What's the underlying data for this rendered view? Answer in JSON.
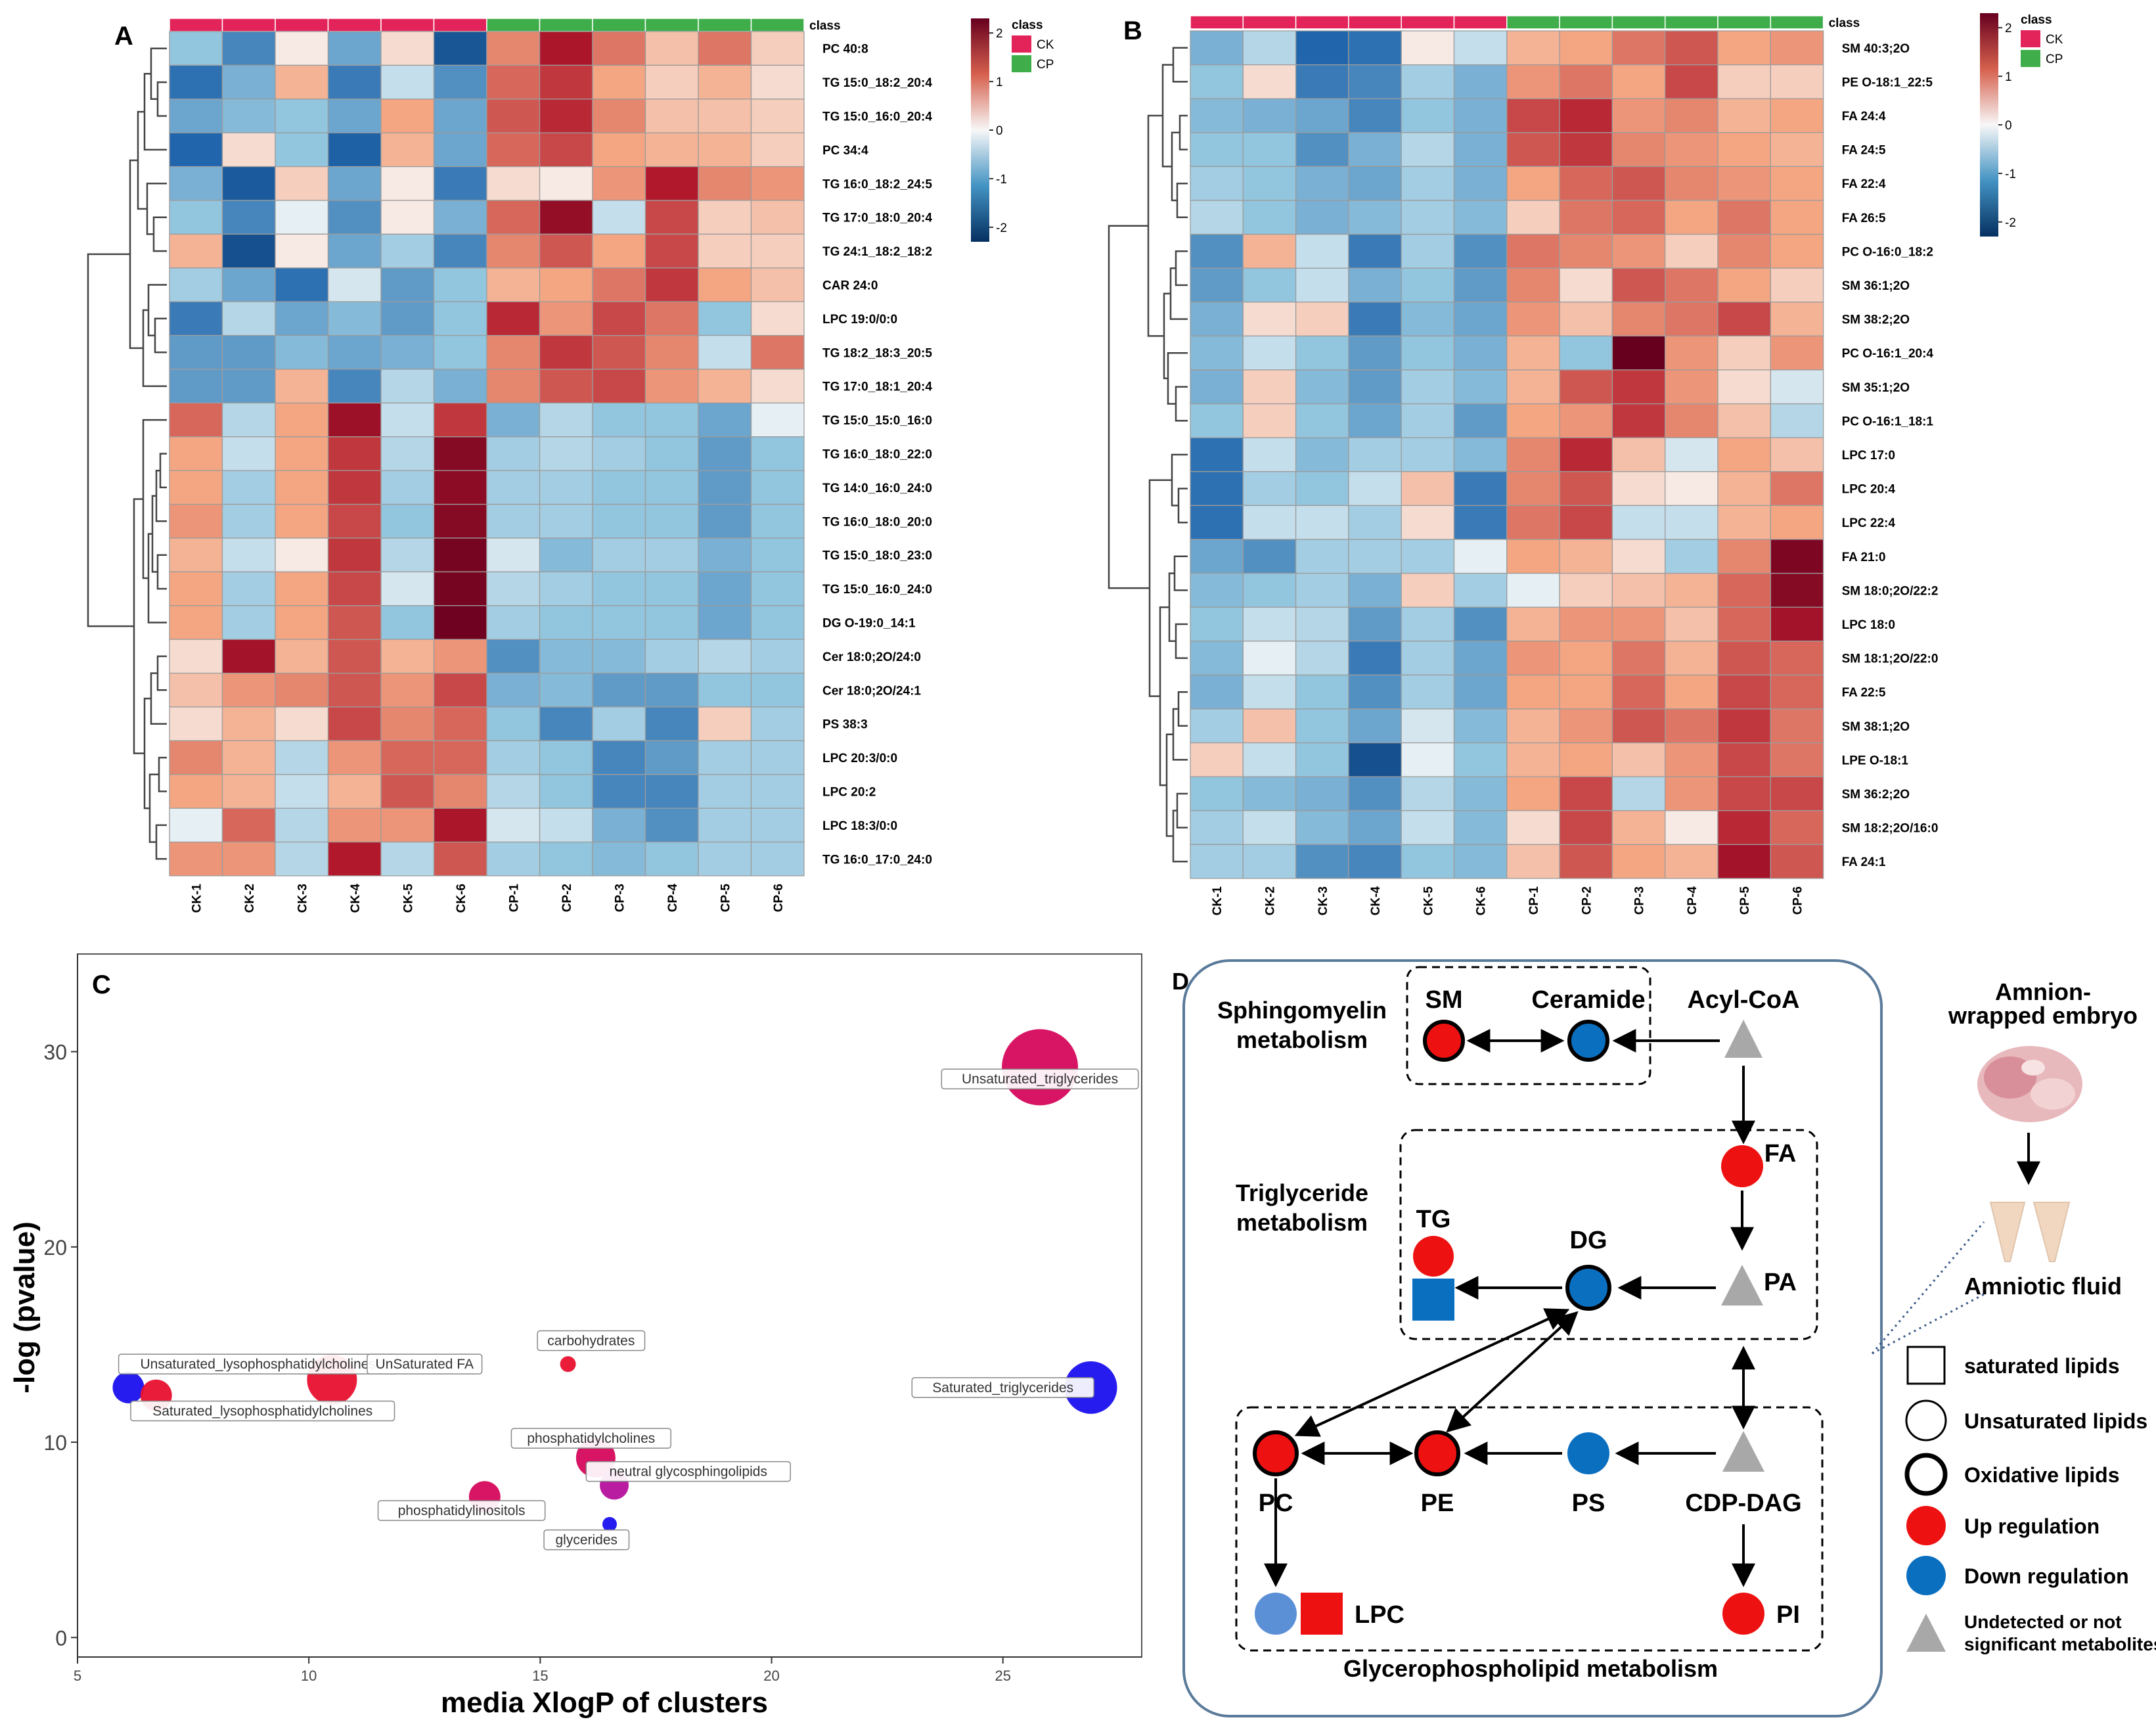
{
  "panels": {
    "a": "A",
    "b": "B",
    "c": "C",
    "d": "D"
  },
  "heatmap_common": {
    "class_label": "class",
    "legend_title": "class",
    "legend_groups": [
      {
        "name": "CK",
        "color": "#e2245a"
      },
      {
        "name": "CP",
        "color": "#3fae4a"
      }
    ],
    "scale_ticks": [
      2,
      1,
      0,
      -1,
      -2
    ],
    "colors": {
      "high": "#67001f",
      "mid": "#f7f7f7",
      "low": "#053061"
    }
  },
  "heatmap_a": {
    "samples": [
      "CK-1",
      "CK-2",
      "CK-3",
      "CK-4",
      "CK-5",
      "CK-6",
      "CP-1",
      "CP-2",
      "CP-3",
      "CP-4",
      "CP-5",
      "CP-6"
    ],
    "rows": [
      "PC 40:8",
      "TG 15:0_18:2_20:4",
      "TG 15:0_16:0_20:4",
      "PC 34:4",
      "TG 16:0_18:2_24:5",
      "TG 17:0_18:0_20:4",
      "TG 24:1_18:2_18:2",
      "CAR 24:0",
      "LPC 19:0/0:0",
      "TG 18:2_18:3_20:5",
      "TG 17:0_18:1_20:4",
      "TG 15:0_15:0_16:0",
      "TG 16:0_18:0_22:0",
      "TG 14:0_16:0_24:0",
      "TG 16:0_18:0_20:0",
      "TG 15:0_18:0_23:0",
      "TG 15:0_16:0_24:0",
      "DG O-19:0_14:1",
      "Cer 18:0;2O/24:0",
      "Cer 18:0;2O/24:1",
      "PS 38:3",
      "LPC 20:3/0:0",
      "LPC 20:2",
      "LPC 18:3/0:0",
      "TG 16:0_17:0_24:0"
    ],
    "values": [
      [
        -0.6,
        -1.2,
        0.1,
        -0.9,
        0.2,
        -1.8,
        0.8,
        1.6,
        0.9,
        0.4,
        0.9,
        0.3
      ],
      [
        -1.4,
        -0.8,
        0.5,
        -1.3,
        -0.3,
        -1.1,
        1.0,
        1.3,
        0.6,
        0.3,
        0.5,
        0.2
      ],
      [
        -0.9,
        -0.7,
        -0.6,
        -0.9,
        0.6,
        -0.9,
        1.1,
        1.4,
        0.8,
        0.4,
        0.4,
        0.3
      ],
      [
        -1.5,
        0.2,
        -0.6,
        -1.6,
        0.5,
        -0.9,
        1.0,
        1.2,
        0.6,
        0.5,
        0.5,
        0.3
      ],
      [
        -0.8,
        -1.7,
        0.3,
        -0.9,
        0.1,
        -1.3,
        0.2,
        0.1,
        0.7,
        1.5,
        0.8,
        0.7
      ],
      [
        -0.6,
        -1.2,
        -0.1,
        -1.1,
        0.1,
        -0.8,
        1.0,
        1.9,
        -0.3,
        1.2,
        0.3,
        0.4
      ],
      [
        0.5,
        -1.9,
        0.1,
        -0.9,
        -0.5,
        -1.2,
        0.8,
        1.1,
        0.6,
        1.2,
        0.3,
        0.3
      ],
      [
        -0.5,
        -0.9,
        -1.4,
        -0.2,
        -1.0,
        -0.6,
        0.5,
        0.6,
        0.9,
        1.3,
        0.6,
        0.4
      ],
      [
        -1.3,
        -0.4,
        -0.9,
        -0.7,
        -1.0,
        -0.6,
        1.4,
        0.7,
        1.2,
        0.9,
        -0.6,
        0.2
      ],
      [
        -1.0,
        -1.0,
        -0.7,
        -0.9,
        -0.8,
        -0.6,
        0.8,
        1.3,
        1.1,
        0.8,
        -0.3,
        0.9
      ],
      [
        -1.0,
        -1.0,
        0.5,
        -1.2,
        -0.4,
        -0.8,
        0.8,
        1.1,
        1.2,
        0.7,
        0.5,
        0.2
      ],
      [
        1.0,
        -0.4,
        0.6,
        1.8,
        -0.3,
        1.3,
        -0.8,
        -0.4,
        -0.6,
        -0.6,
        -0.9,
        -0.1
      ],
      [
        0.6,
        -0.3,
        0.6,
        1.3,
        -0.4,
        2.1,
        -0.5,
        -0.4,
        -0.5,
        -0.6,
        -1.0,
        -0.6
      ],
      [
        0.6,
        -0.5,
        0.6,
        1.3,
        -0.5,
        2.0,
        -0.5,
        -0.5,
        -0.6,
        -0.6,
        -1.0,
        -0.6
      ],
      [
        0.7,
        -0.5,
        0.6,
        1.2,
        -0.6,
        2.1,
        -0.5,
        -0.5,
        -0.6,
        -0.6,
        -1.0,
        -0.6
      ],
      [
        0.5,
        -0.3,
        0.1,
        1.3,
        -0.4,
        2.3,
        -0.2,
        -0.7,
        -0.5,
        -0.5,
        -0.8,
        -0.6
      ],
      [
        0.6,
        -0.5,
        0.6,
        1.2,
        -0.2,
        2.3,
        -0.4,
        -0.5,
        -0.6,
        -0.6,
        -0.9,
        -0.6
      ],
      [
        0.6,
        -0.5,
        0.6,
        1.1,
        -0.6,
        2.4,
        -0.5,
        -0.6,
        -0.6,
        -0.6,
        -0.9,
        -0.6
      ],
      [
        0.2,
        1.7,
        0.5,
        1.1,
        0.5,
        0.7,
        -1.1,
        -0.7,
        -0.7,
        -0.5,
        -0.4,
        -0.5
      ],
      [
        0.4,
        0.7,
        0.8,
        1.1,
        0.7,
        1.2,
        -0.8,
        -0.7,
        -1.0,
        -1.0,
        -0.6,
        -0.6
      ],
      [
        0.2,
        0.5,
        0.2,
        1.2,
        0.8,
        1.0,
        -0.6,
        -1.2,
        -0.5,
        -1.2,
        0.3,
        -0.5
      ],
      [
        0.8,
        0.5,
        -0.4,
        0.7,
        1.0,
        1.0,
        -0.5,
        -0.6,
        -1.2,
        -1.0,
        -0.5,
        -0.5
      ],
      [
        0.6,
        0.5,
        -0.3,
        0.5,
        1.1,
        0.8,
        -0.4,
        -0.6,
        -1.2,
        -1.2,
        -0.5,
        -0.5
      ],
      [
        -0.1,
        1.0,
        -0.4,
        0.7,
        0.7,
        1.6,
        -0.2,
        -0.3,
        -0.8,
        -1.1,
        -0.5,
        -0.5
      ],
      [
        0.7,
        0.7,
        -0.4,
        1.5,
        -0.4,
        1.1,
        -0.5,
        -0.6,
        -0.7,
        -0.6,
        -0.5,
        -0.5
      ]
    ]
  },
  "heatmap_b": {
    "samples": [
      "CK-1",
      "CK-2",
      "CK-3",
      "CK-4",
      "CK-5",
      "CK-6",
      "CP-1",
      "CP-2",
      "CP-3",
      "CP-4",
      "CP-5",
      "CP-6"
    ],
    "rows": [
      "SM 40:3;2O",
      "PE O-18:1_22:5",
      "FA 24:4",
      "FA 24:5",
      "FA 22:4",
      "FA 26:5",
      "PC O-16:0_18:2",
      "SM 36:1;2O",
      "SM 38:2;2O",
      "PC O-16:1_20:4",
      "SM 35:1;2O",
      "PC O-16:1_18:1",
      "LPC 17:0",
      "LPC 20:4",
      "LPC 22:4",
      "FA 21:0",
      "SM 18:0;2O/22:2",
      "LPC 18:0",
      "SM 18:1;2O/22:0",
      "FA 22:5",
      "SM 38:1;2O",
      "LPE O-18:1",
      "SM 36:2;2O",
      "SM 18:2;2O/16:0",
      "FA 24:1"
    ],
    "values": [
      [
        -0.8,
        -0.4,
        -1.5,
        -1.4,
        0.1,
        -0.3,
        0.5,
        0.6,
        0.9,
        1.1,
        0.6,
        0.7
      ],
      [
        -0.6,
        0.2,
        -1.3,
        -1.2,
        -0.5,
        -0.8,
        0.7,
        0.9,
        0.6,
        1.2,
        0.3,
        0.3
      ],
      [
        -0.7,
        -0.8,
        -0.9,
        -1.2,
        -0.6,
        -0.8,
        1.2,
        1.4,
        0.7,
        0.8,
        0.5,
        0.6
      ],
      [
        -0.6,
        -0.6,
        -1.1,
        -0.8,
        -0.4,
        -0.8,
        1.1,
        1.3,
        0.8,
        0.7,
        0.6,
        0.5
      ],
      [
        -0.5,
        -0.6,
        -0.8,
        -0.9,
        -0.5,
        -0.8,
        0.6,
        1.0,
        1.1,
        0.8,
        0.7,
        0.6
      ],
      [
        -0.4,
        -0.6,
        -0.8,
        -0.7,
        -0.5,
        -0.7,
        0.3,
        0.9,
        1.0,
        0.6,
        0.9,
        0.6
      ],
      [
        -1.1,
        0.5,
        -0.3,
        -1.3,
        -0.5,
        -1.1,
        0.9,
        0.8,
        0.7,
        0.3,
        0.8,
        0.6
      ],
      [
        -1.0,
        -0.6,
        -0.3,
        -0.8,
        -0.6,
        -1.0,
        0.8,
        0.2,
        1.1,
        0.9,
        0.6,
        0.3
      ],
      [
        -0.8,
        0.2,
        0.3,
        -1.3,
        -0.7,
        -0.9,
        0.7,
        0.4,
        0.8,
        0.9,
        1.2,
        0.5
      ],
      [
        -0.7,
        -0.3,
        -0.6,
        -1.0,
        -0.6,
        -0.8,
        0.5,
        -0.6,
        2.5,
        0.7,
        0.3,
        0.7
      ],
      [
        -0.8,
        0.3,
        -0.7,
        -1.0,
        -0.5,
        -0.7,
        0.5,
        1.1,
        1.3,
        0.7,
        0.2,
        -0.2
      ],
      [
        -0.6,
        0.3,
        -0.6,
        -0.9,
        -0.5,
        -1.0,
        0.6,
        0.7,
        1.3,
        0.8,
        0.4,
        -0.4
      ],
      [
        -1.4,
        -0.3,
        -0.7,
        -0.5,
        -0.5,
        -0.7,
        0.8,
        1.4,
        0.4,
        -0.2,
        0.6,
        0.4
      ],
      [
        -1.4,
        -0.5,
        -0.6,
        -0.3,
        0.4,
        -1.3,
        0.8,
        1.1,
        0.2,
        0.1,
        0.5,
        0.9
      ],
      [
        -1.4,
        -0.3,
        -0.3,
        -0.5,
        0.2,
        -1.3,
        0.9,
        1.2,
        -0.3,
        -0.3,
        0.5,
        0.6
      ],
      [
        -0.9,
        -1.1,
        -0.5,
        -0.5,
        -0.5,
        -0.1,
        0.6,
        0.5,
        0.2,
        -0.5,
        0.8,
        2.2
      ],
      [
        -0.7,
        -0.6,
        -0.5,
        -0.8,
        0.3,
        -0.5,
        -0.1,
        0.3,
        0.4,
        0.5,
        1.0,
        2.1
      ],
      [
        -0.6,
        -0.3,
        -0.4,
        -1.0,
        -0.5,
        -1.1,
        0.5,
        0.7,
        0.7,
        0.4,
        1.0,
        1.7
      ],
      [
        -0.7,
        -0.1,
        -0.4,
        -1.3,
        -0.5,
        -0.9,
        0.7,
        0.6,
        0.9,
        0.5,
        1.1,
        1.0
      ],
      [
        -0.8,
        -0.3,
        -0.6,
        -1.1,
        -0.5,
        -0.9,
        0.6,
        0.6,
        1.0,
        0.6,
        1.2,
        1.0
      ],
      [
        -0.5,
        0.4,
        -0.6,
        -0.9,
        -0.2,
        -0.7,
        0.5,
        0.7,
        1.1,
        0.9,
        1.3,
        0.9
      ],
      [
        0.3,
        -0.3,
        -0.6,
        -1.9,
        -0.1,
        -0.6,
        0.5,
        0.6,
        0.4,
        0.7,
        1.2,
        0.9
      ],
      [
        -0.6,
        -0.7,
        -0.8,
        -1.1,
        -0.4,
        -0.7,
        0.6,
        1.2,
        -0.4,
        0.7,
        1.2,
        1.2
      ],
      [
        -0.5,
        -0.3,
        -0.7,
        -0.9,
        -0.3,
        -0.7,
        0.2,
        1.2,
        0.5,
        0.1,
        1.4,
        1.0
      ],
      [
        -0.5,
        -0.5,
        -1.1,
        -1.2,
        -0.6,
        -0.7,
        0.4,
        1.1,
        0.6,
        0.5,
        1.7,
        1.1
      ]
    ]
  },
  "chart_data": {
    "type": "scatter",
    "title": "",
    "xlabel": "media XlogP of clusters",
    "ylabel": "-log (pvalue)",
    "xlim": [
      5,
      28
    ],
    "ylim": [
      -1,
      35
    ],
    "x_ticks": [
      5,
      10,
      15,
      20,
      25
    ],
    "y_ticks": [
      0,
      10,
      20,
      30
    ],
    "points": [
      {
        "label": "Unsaturated_triglycerides",
        "x": 25.8,
        "y": 29.2,
        "size": 58,
        "color": "#d6085c",
        "lx": 25.8,
        "ly": 28.6
      },
      {
        "label": "Saturated_triglycerides",
        "x": 26.9,
        "y": 12.8,
        "size": 40,
        "color": "#1a10ee",
        "lx": 25.0,
        "ly": 12.8
      },
      {
        "label": "Unsaturated_lysophosphatidylcholines",
        "x": 6.1,
        "y": 12.8,
        "size": 24,
        "color": "#1a10ee",
        "lx": 8.9,
        "ly": 14.0
      },
      {
        "label": "Saturated_lysophosphatidylcholines",
        "x": 6.7,
        "y": 12.4,
        "size": 24,
        "color": "#e8102f",
        "lx": 9.0,
        "ly": 11.6
      },
      {
        "label": "UnSaturated FA",
        "x": 10.5,
        "y": 13.2,
        "size": 38,
        "color": "#e8102f",
        "lx": 12.5,
        "ly": 14.0
      },
      {
        "label": "carbohydrates",
        "x": 15.6,
        "y": 14.0,
        "size": 12,
        "color": "#e8102f",
        "lx": 16.1,
        "ly": 15.2
      },
      {
        "label": "phosphatidylcholines",
        "x": 16.2,
        "y": 9.2,
        "size": 30,
        "color": "#d6085c",
        "lx": 16.1,
        "ly": 10.2
      },
      {
        "label": "neutral glycosphingolipids",
        "x": 16.6,
        "y": 7.8,
        "size": 22,
        "color": "#b5109b",
        "lx": 18.2,
        "ly": 8.5
      },
      {
        "label": "phosphatidylinositols",
        "x": 13.8,
        "y": 7.2,
        "size": 24,
        "color": "#d6085c",
        "lx": 13.3,
        "ly": 6.5
      },
      {
        "label": "glycerides",
        "x": 16.5,
        "y": 5.8,
        "size": 11,
        "color": "#1a10ee",
        "lx": 16.0,
        "ly": 5.0
      }
    ]
  },
  "pathway": {
    "sphingomyelin_title_1": "Sphingomyelin",
    "sphingomyelin_title_2": "metabolism",
    "triglyceride_title_1": "Triglyceride",
    "triglyceride_title_2": "metabolism",
    "glycerophospholipid_title": "Glycerophospholipid metabolism",
    "nodes": {
      "sm": "SM",
      "ceramide": "Ceramide",
      "acyl_coa": "Acyl-CoA",
      "fa": "FA",
      "pa": "PA",
      "tg": "TG",
      "dg": "DG",
      "pc": "PC",
      "pe": "PE",
      "ps": "PS",
      "cdp_dag": "CDP-DAG",
      "lpc": "LPC",
      "pi": "PI"
    },
    "embryo_label_1": "Amnion-",
    "embryo_label_2": "wrapped embryo",
    "fluid_label": "Amniotic fluid",
    "legend": [
      {
        "key": "square",
        "label": "saturated lipids"
      },
      {
        "key": "circle",
        "label": "Unsaturated lipids"
      },
      {
        "key": "thick",
        "label": "Oxidative lipids"
      },
      {
        "key": "up",
        "label": "Up regulation"
      },
      {
        "key": "down",
        "label": "Down regulation"
      },
      {
        "key": "undetected",
        "label_1": "Undetected or not",
        "label_2": "significant metabolites"
      }
    ],
    "colors": {
      "up": "#ee1111",
      "down": "#0b6fc0",
      "down_light": "#5b8fd6",
      "undetected": "#a8a8a8",
      "frame": "#5a7a9a"
    }
  }
}
